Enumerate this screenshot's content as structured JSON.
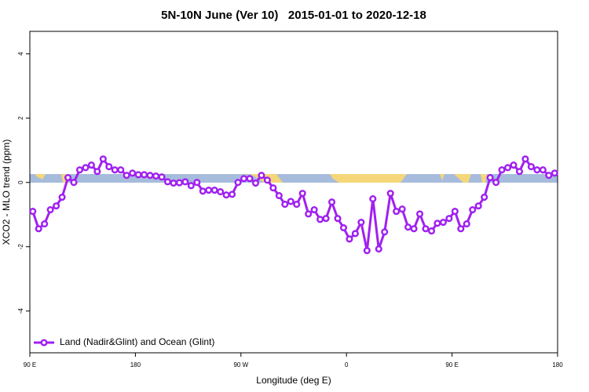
{
  "chart_data": {
    "type": "line",
    "title": "5N-10N June (Ver 10)   2015-01-01 to 2020-12-18",
    "x_label": "Longitude (deg E)",
    "y_label": "XCO2 - MLO trend (ppm)",
    "xlim": [
      90,
      540
    ],
    "ylim": [
      -5.3,
      4.7
    ],
    "xticks": [
      {
        "value": 90,
        "label": "90 E"
      },
      180,
      {
        "value": 270,
        "label": "90 W"
      },
      {
        "value": 360,
        "label": "0"
      },
      {
        "value": 450,
        "label": "90 E"
      },
      {
        "value": 540,
        "label": "180"
      }
    ],
    "yticks": [
      -4,
      -2,
      0,
      2,
      4
    ],
    "legend_position": "bottom-left",
    "x": [
      92.5,
      97.5,
      102.5,
      107.5,
      112.5,
      117.5,
      122.5,
      127.5,
      132.5,
      137.5,
      142.5,
      147.5,
      152.5,
      157.5,
      162.5,
      167.5,
      172.5,
      177.5,
      182.5,
      187.5,
      192.5,
      197.5,
      202.5,
      207.5,
      212.5,
      217.5,
      222.5,
      227.5,
      232.5,
      237.5,
      242.5,
      247.5,
      252.5,
      257.5,
      262.5,
      267.5,
      272.5,
      277.5,
      282.5,
      287.5,
      292.5,
      297.5,
      302.5,
      307.5,
      312.5,
      317.5,
      322.5,
      327.5,
      332.5,
      337.5,
      342.5,
      347.5,
      352.5,
      357.5,
      362.5,
      367.5,
      372.5,
      377.5,
      382.5,
      387.5,
      392.5,
      397.5,
      402.5,
      407.5,
      412.5,
      417.5,
      422.5,
      427.5,
      432.5,
      437.5,
      442.5,
      447.5,
      452.5,
      457.5,
      462.5,
      467.5,
      472.5,
      477.5,
      482.5,
      487.5,
      492.5,
      497.5,
      502.5,
      507.5,
      512.5,
      517.5,
      522.5,
      527.5,
      532.5,
      537.5
    ],
    "series": [
      {
        "name": "Land (Nadir&Glint) and Ocean (Glint)",
        "color": "#a020f0",
        "values": [
          -0.9,
          -1.44,
          -1.29,
          -0.85,
          -0.73,
          -0.46,
          0.15,
          0.0,
          0.39,
          0.46,
          0.54,
          0.34,
          0.73,
          0.49,
          0.39,
          0.39,
          0.22,
          0.29,
          0.24,
          0.24,
          0.22,
          0.2,
          0.17,
          0.02,
          -0.02,
          -0.01,
          0.02,
          -0.1,
          0.0,
          -0.27,
          -0.24,
          -0.24,
          -0.29,
          -0.39,
          -0.37,
          0.0,
          0.12,
          0.12,
          -0.02,
          0.22,
          0.07,
          -0.17,
          -0.41,
          -0.68,
          -0.59,
          -0.68,
          -0.34,
          -0.98,
          -0.85,
          -1.15,
          -1.12,
          -0.61,
          -1.12,
          -1.41,
          -1.76,
          -1.59,
          -1.24,
          -2.12,
          -0.51,
          -2.07,
          -1.54,
          -0.34,
          -0.9,
          -0.83,
          -1.39,
          -1.44,
          -0.98,
          -1.44,
          -1.51,
          -1.27,
          -1.24,
          -1.12,
          -0.9,
          -1.44,
          -1.29,
          -0.85,
          -0.73,
          -0.46,
          0.15,
          0.0,
          0.39,
          0.46,
          0.54,
          0.34,
          0.73,
          0.49,
          0.39,
          0.39,
          0.22,
          0.29
        ]
      }
    ]
  }
}
